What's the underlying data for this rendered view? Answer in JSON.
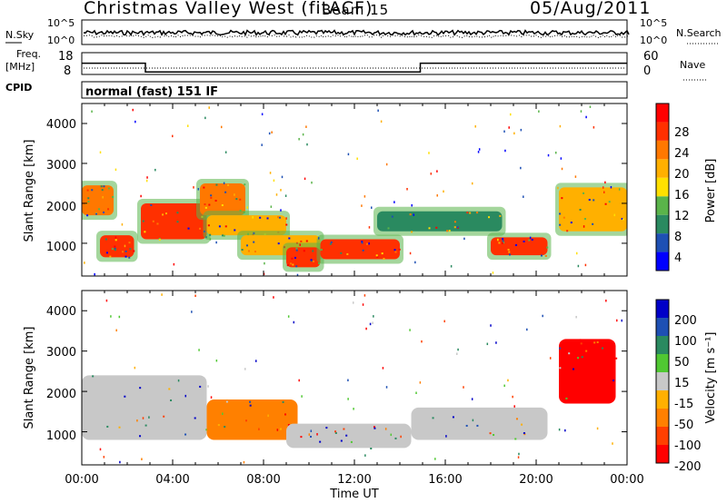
{
  "header": {
    "title": "Christmas Valley West (fitACF)",
    "beam": "Beam 15",
    "date": "05/Aug/2011"
  },
  "noise_panel": {
    "left_label": "N.Sky",
    "right_label": "N.Search",
    "left_ticks": [
      "10^5",
      "10^0"
    ],
    "right_ticks": [
      "10^5",
      "10^0"
    ]
  },
  "freq_panel": {
    "left_label_1": "Freq.",
    "left_label_2": "[MHz]",
    "right_label": "Nave",
    "left_ticks": [
      "18",
      "8"
    ],
    "right_ticks": [
      "60",
      "0"
    ]
  },
  "cpid_panel": {
    "label": "CPID",
    "program": "normal (fast) 151 IF"
  },
  "power_panel": {
    "ylabel": "Slant Range [km]",
    "yticks": [
      "4000",
      "3000",
      "2000",
      "1000"
    ],
    "colorbar_label": "Power [dB]",
    "colorbar_ticks": [
      "28",
      "24",
      "20",
      "16",
      "12",
      "8",
      "4"
    ],
    "colors": [
      "#0000ff",
      "#1e50b4",
      "#2a8a60",
      "#5ab44a",
      "#ffe000",
      "#ffb000",
      "#ff7800",
      "#ff3000",
      "#ff0000"
    ]
  },
  "velocity_panel": {
    "ylabel": "Slant Range [km]",
    "yticks": [
      "4000",
      "3000",
      "2000",
      "1000"
    ],
    "colorbar_label": "Velocity [m s⁻¹]",
    "colorbar_ticks": [
      "200",
      "100",
      "50",
      "15",
      "-15",
      "-50",
      "-100",
      "-200"
    ],
    "colors": [
      "#0000c8",
      "#1e50b4",
      "#2a8a60",
      "#50c832",
      "#c8c8c8",
      "#ffb000",
      "#ff8000",
      "#ff4000",
      "#ff0000"
    ],
    "ground_scatter_color": "#c8c8c8"
  },
  "xaxis": {
    "label": "Time UT",
    "ticks": [
      "00:00",
      "04:00",
      "08:00",
      "12:00",
      "16:00",
      "20:00",
      "00:00"
    ]
  },
  "chart_data": {
    "type": "heatmap",
    "x_unit": "hours UT",
    "xlim": [
      0,
      24
    ],
    "ylim": [
      180,
      4500
    ],
    "y_unit": "km",
    "frequency_MHz": {
      "segments": [
        {
          "start": 0,
          "end": 2.8,
          "value": 14
        },
        {
          "start": 2.8,
          "end": 14.9,
          "value": 10
        },
        {
          "start": 14.9,
          "end": 24,
          "value": 14
        }
      ]
    },
    "power_regions": [
      {
        "t0": 0.0,
        "t1": 1.4,
        "r0": 1700,
        "r1": 2450,
        "level": 24
      },
      {
        "t0": 0.8,
        "t1": 2.3,
        "r0": 650,
        "r1": 1200,
        "level": 28
      },
      {
        "t0": 2.6,
        "t1": 5.5,
        "r0": 1100,
        "r1": 2000,
        "level": 28
      },
      {
        "t0": 5.2,
        "t1": 7.2,
        "r0": 1700,
        "r1": 2500,
        "level": 24
      },
      {
        "t0": 5.5,
        "t1": 9.0,
        "r0": 1200,
        "r1": 1700,
        "level": 20
      },
      {
        "t0": 7.0,
        "t1": 10.5,
        "r0": 700,
        "r1": 1200,
        "level": 20
      },
      {
        "t0": 9.0,
        "t1": 10.5,
        "r0": 400,
        "r1": 900,
        "level": 28
      },
      {
        "t0": 10.5,
        "t1": 14.0,
        "r0": 600,
        "r1": 1100,
        "level": 28
      },
      {
        "t0": 13.0,
        "t1": 18.5,
        "r0": 1300,
        "r1": 1800,
        "level": 8
      },
      {
        "t0": 18.0,
        "t1": 20.5,
        "r0": 700,
        "r1": 1150,
        "level": 28
      },
      {
        "t0": 21.0,
        "t1": 24.0,
        "r0": 1300,
        "r1": 2400,
        "level": 20
      }
    ],
    "velocity_regions": [
      {
        "t0": 0.0,
        "t1": 5.5,
        "r0": 800,
        "r1": 2400,
        "value": 0
      },
      {
        "t0": 5.5,
        "t1": 9.5,
        "r0": 800,
        "r1": 1800,
        "value": -50
      },
      {
        "t0": 9.0,
        "t1": 14.5,
        "r0": 600,
        "r1": 1200,
        "value": 0
      },
      {
        "t0": 14.5,
        "t1": 20.5,
        "r0": 800,
        "r1": 1600,
        "value": 0
      },
      {
        "t0": 21.0,
        "t1": 23.5,
        "r0": 1700,
        "r1": 3300,
        "value": -200
      }
    ]
  }
}
